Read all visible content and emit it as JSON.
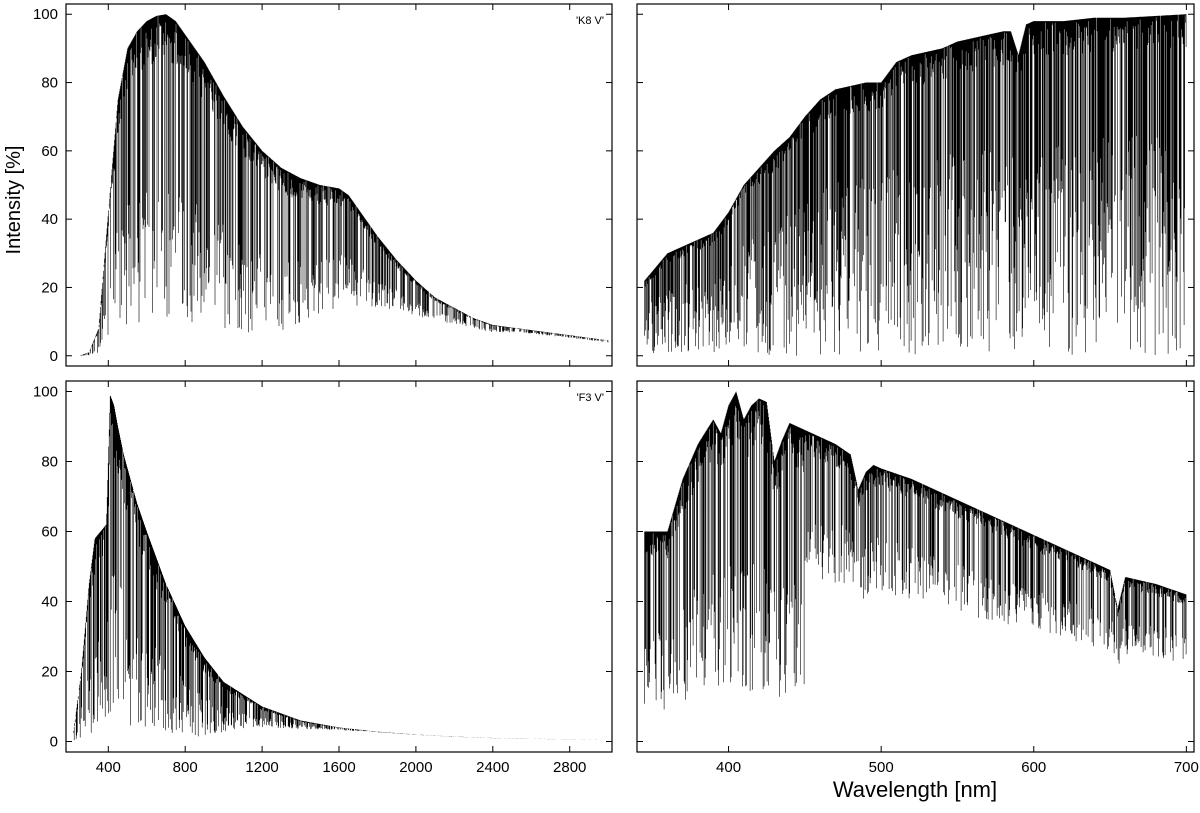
{
  "figure": {
    "ylabel": "Intensity [%]",
    "xlabel": "Wavelength  [nm]"
  },
  "chart_data": [
    {
      "type": "line",
      "label": "'K8 V'",
      "xlim": [
        180,
        3020
      ],
      "ylim": [
        -3,
        103
      ],
      "xticks": [
        400,
        800,
        1200,
        1600,
        2000,
        2400,
        2800
      ],
      "yticks": [
        0,
        20,
        40,
        60,
        80,
        100
      ],
      "show_xtick_labels": false,
      "show_ytick_labels": true,
      "envelope_x": [
        250,
        300,
        350,
        400,
        450,
        500,
        550,
        600,
        650,
        700,
        750,
        800,
        900,
        1000,
        1100,
        1200,
        1300,
        1400,
        1500,
        1600,
        1650,
        1700,
        1800,
        1900,
        2000,
        2100,
        2200,
        2300,
        2400,
        2600,
        2800,
        3000
      ],
      "envelope_y": [
        0,
        1,
        8,
        42,
        75,
        90,
        95,
        98,
        99.5,
        100,
        98,
        94,
        86,
        76,
        67,
        60,
        55,
        52,
        50,
        49,
        47,
        43,
        35,
        28,
        22,
        17,
        14,
        11,
        9,
        7.5,
        6,
        4.5
      ],
      "absorption_lines": "dense; lines reach ~0–20% at blue end, shallower toward IR"
    },
    {
      "type": "line",
      "xlim": [
        340,
        705
      ],
      "ylim": [
        -3,
        103
      ],
      "xticks": [
        400,
        500,
        600,
        700
      ],
      "yticks": [
        0,
        20,
        40,
        60,
        80,
        100
      ],
      "show_xtick_labels": false,
      "show_ytick_labels": false,
      "envelope_x": [
        345,
        360,
        370,
        380,
        390,
        400,
        410,
        420,
        430,
        440,
        450,
        460,
        470,
        480,
        490,
        500,
        510,
        520,
        530,
        540,
        550,
        560,
        570,
        580,
        585,
        590,
        595,
        600,
        620,
        640,
        660,
        680,
        700
      ],
      "envelope_y": [
        22,
        30,
        32,
        34,
        36,
        42,
        50,
        55,
        60,
        64,
        70,
        75,
        78,
        79,
        80,
        80,
        86,
        88,
        89,
        90,
        92,
        93,
        94,
        95,
        95,
        88,
        97,
        98,
        98,
        99,
        99,
        99.5,
        100
      ],
      "absorption_lines": "very dense molecular bands; many lines to near 0%"
    },
    {
      "type": "line",
      "label": "'F3 V'",
      "xlim": [
        180,
        3020
      ],
      "ylim": [
        -3,
        103
      ],
      "xticks": [
        400,
        800,
        1200,
        1600,
        2000,
        2400,
        2800
      ],
      "xtick_labels": [
        "400",
        "800",
        "1200",
        "1600",
        "2000",
        "2400",
        "2800"
      ],
      "yticks": [
        0,
        20,
        40,
        60,
        80,
        100
      ],
      "show_xtick_labels": true,
      "show_ytick_labels": true,
      "envelope_x": [
        220,
        260,
        300,
        330,
        360,
        390,
        410,
        430,
        450,
        480,
        500,
        550,
        600,
        700,
        800,
        900,
        1000,
        1200,
        1400,
        1600,
        1800,
        2000,
        2200,
        2400,
        2600,
        2800,
        3000
      ],
      "envelope_y": [
        3,
        20,
        45,
        58,
        60,
        62,
        99,
        96,
        90,
        82,
        78,
        68,
        60,
        45,
        33,
        24,
        17,
        10,
        6,
        4,
        2.8,
        2,
        1.4,
        1,
        0.8,
        0.6,
        0.5
      ],
      "absorption_lines": "dense in blue/visible, sparse in IR"
    },
    {
      "type": "line",
      "xlim": [
        340,
        705
      ],
      "ylim": [
        -3,
        103
      ],
      "xticks": [
        400,
        500,
        600,
        700
      ],
      "xtick_labels": [
        "400",
        "500",
        "600",
        "700"
      ],
      "yticks": [
        0,
        20,
        40,
        60,
        80,
        100
      ],
      "show_xtick_labels": true,
      "show_ytick_labels": false,
      "envelope_x": [
        345,
        360,
        370,
        380,
        390,
        395,
        400,
        405,
        410,
        415,
        420,
        425,
        430,
        435,
        440,
        450,
        460,
        470,
        480,
        485,
        490,
        495,
        500,
        520,
        540,
        560,
        580,
        600,
        620,
        640,
        650,
        655,
        660,
        680,
        700
      ],
      "envelope_y": [
        60,
        60,
        75,
        85,
        92,
        88,
        96,
        100,
        92,
        96,
        98,
        97,
        80,
        86,
        91,
        89,
        87,
        85,
        82,
        72,
        77,
        79,
        78,
        75,
        71,
        67,
        63,
        59,
        55,
        51,
        49,
        38,
        47,
        45,
        42
      ],
      "absorption_lines": "Balmer lines plus many metal lines"
    }
  ]
}
